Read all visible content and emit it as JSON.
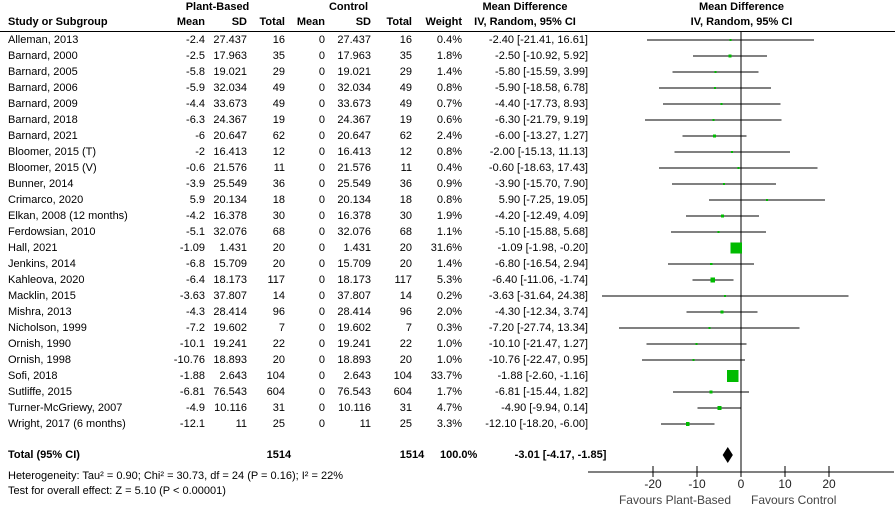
{
  "header": {
    "group1": "Plant-Based",
    "group2": "Control",
    "study_col": "Study or Subgroup",
    "mean_col": "Mean",
    "sd_col": "SD",
    "total_col": "Total",
    "weight_col": "Weight",
    "md_title": "Mean Difference",
    "md_subtitle": "IV, Random, 95% CI"
  },
  "chart_data": {
    "type": "forest",
    "effect_measure": "Mean Difference IV, Random, 95% CI",
    "marker_color": "#00bb00",
    "diamond_color": "#000000",
    "axis": {
      "ticks": [
        -20,
        -10,
        0,
        10,
        20
      ],
      "xlim": [
        -34,
        34
      ],
      "left_label": "Favours Plant-Based",
      "right_label": "Favours Control"
    },
    "studies": [
      {
        "name": "Alleman, 2013",
        "mean": "-2.4",
        "sd": "27.437",
        "n": "16",
        "c_mean": "0",
        "c_sd": "27.437",
        "c_n": "16",
        "weight": "0.4%",
        "w": 0.4,
        "est": -2.4,
        "lo": -21.41,
        "hi": 16.61,
        "ci": "-2.40 [-21.41, 16.61]"
      },
      {
        "name": "Barnard, 2000",
        "mean": "-2.5",
        "sd": "17.963",
        "n": "35",
        "c_mean": "0",
        "c_sd": "17.963",
        "c_n": "35",
        "weight": "1.8%",
        "w": 1.8,
        "est": -2.5,
        "lo": -10.92,
        "hi": 5.92,
        "ci": "-2.50 [-10.92, 5.92]"
      },
      {
        "name": "Barnard, 2005",
        "mean": "-5.8",
        "sd": "19.021",
        "n": "29",
        "c_mean": "0",
        "c_sd": "19.021",
        "c_n": "29",
        "weight": "1.4%",
        "w": 1.4,
        "est": -5.8,
        "lo": -15.59,
        "hi": 3.99,
        "ci": "-5.80 [-15.59, 3.99]"
      },
      {
        "name": "Barnard, 2006",
        "mean": "-5.9",
        "sd": "32.034",
        "n": "49",
        "c_mean": "0",
        "c_sd": "32.034",
        "c_n": "49",
        "weight": "0.8%",
        "w": 0.8,
        "est": -5.9,
        "lo": -18.58,
        "hi": 6.78,
        "ci": "-5.90 [-18.58, 6.78]"
      },
      {
        "name": "Barnard, 2009",
        "mean": "-4.4",
        "sd": "33.673",
        "n": "49",
        "c_mean": "0",
        "c_sd": "33.673",
        "c_n": "49",
        "weight": "0.7%",
        "w": 0.7,
        "est": -4.4,
        "lo": -17.73,
        "hi": 8.93,
        "ci": "-4.40 [-17.73, 8.93]"
      },
      {
        "name": "Barnard, 2018",
        "mean": "-6.3",
        "sd": "24.367",
        "n": "19",
        "c_mean": "0",
        "c_sd": "24.367",
        "c_n": "19",
        "weight": "0.6%",
        "w": 0.6,
        "est": -6.3,
        "lo": -21.79,
        "hi": 9.19,
        "ci": "-6.30 [-21.79, 9.19]"
      },
      {
        "name": "Barnard, 2021",
        "mean": "-6",
        "sd": "20.647",
        "n": "62",
        "c_mean": "0",
        "c_sd": "20.647",
        "c_n": "62",
        "weight": "2.4%",
        "w": 2.4,
        "est": -6.0,
        "lo": -13.27,
        "hi": 1.27,
        "ci": "-6.00 [-13.27, 1.27]"
      },
      {
        "name": "Bloomer, 2015 (T)",
        "mean": "-2",
        "sd": "16.413",
        "n": "12",
        "c_mean": "0",
        "c_sd": "16.413",
        "c_n": "12",
        "weight": "0.8%",
        "w": 0.8,
        "est": -2.0,
        "lo": -15.13,
        "hi": 11.13,
        "ci": "-2.00 [-15.13, 11.13]"
      },
      {
        "name": "Bloomer, 2015 (V)",
        "mean": "-0.6",
        "sd": "21.576",
        "n": "11",
        "c_mean": "0",
        "c_sd": "21.576",
        "c_n": "11",
        "weight": "0.4%",
        "w": 0.4,
        "est": -0.6,
        "lo": -18.63,
        "hi": 17.43,
        "ci": "-0.60 [-18.63, 17.43]"
      },
      {
        "name": "Bunner, 2014",
        "mean": "-3.9",
        "sd": "25.549",
        "n": "36",
        "c_mean": "0",
        "c_sd": "25.549",
        "c_n": "36",
        "weight": "0.9%",
        "w": 0.9,
        "est": -3.9,
        "lo": -15.7,
        "hi": 7.9,
        "ci": "-3.90 [-15.70, 7.90]"
      },
      {
        "name": "Crimarco, 2020",
        "mean": "5.9",
        "sd": "20.134",
        "n": "18",
        "c_mean": "0",
        "c_sd": "20.134",
        "c_n": "18",
        "weight": "0.8%",
        "w": 0.8,
        "est": 5.9,
        "lo": -7.25,
        "hi": 19.05,
        "ci": "5.90 [-7.25, 19.05]"
      },
      {
        "name": "Elkan, 2008 (12 months)",
        "mean": "-4.2",
        "sd": "16.378",
        "n": "30",
        "c_mean": "0",
        "c_sd": "16.378",
        "c_n": "30",
        "weight": "1.9%",
        "w": 1.9,
        "est": -4.2,
        "lo": -12.49,
        "hi": 4.09,
        "ci": "-4.20 [-12.49, 4.09]"
      },
      {
        "name": "Ferdowsian, 2010",
        "mean": "-5.1",
        "sd": "32.076",
        "n": "68",
        "c_mean": "0",
        "c_sd": "32.076",
        "c_n": "68",
        "weight": "1.1%",
        "w": 1.1,
        "est": -5.1,
        "lo": -15.88,
        "hi": 5.68,
        "ci": "-5.10 [-15.88, 5.68]"
      },
      {
        "name": "Hall, 2021",
        "mean": "-1.09",
        "sd": "1.431",
        "n": "20",
        "c_mean": "0",
        "c_sd": "1.431",
        "c_n": "20",
        "weight": "31.6%",
        "w": 31.6,
        "est": -1.09,
        "lo": -1.98,
        "hi": -0.2,
        "ci": "-1.09 [-1.98, -0.20]"
      },
      {
        "name": "Jenkins, 2014",
        "mean": "-6.8",
        "sd": "15.709",
        "n": "20",
        "c_mean": "0",
        "c_sd": "15.709",
        "c_n": "20",
        "weight": "1.4%",
        "w": 1.4,
        "est": -6.8,
        "lo": -16.54,
        "hi": 2.94,
        "ci": "-6.80 [-16.54, 2.94]"
      },
      {
        "name": "Kahleova, 2020",
        "mean": "-6.4",
        "sd": "18.173",
        "n": "117",
        "c_mean": "0",
        "c_sd": "18.173",
        "c_n": "117",
        "weight": "5.3%",
        "w": 5.3,
        "est": -6.4,
        "lo": -11.06,
        "hi": -1.74,
        "ci": "-6.40 [-11.06, -1.74]"
      },
      {
        "name": "Macklin, 2015",
        "mean": "-3.63",
        "sd": "37.807",
        "n": "14",
        "c_mean": "0",
        "c_sd": "37.807",
        "c_n": "14",
        "weight": "0.2%",
        "w": 0.2,
        "est": -3.63,
        "lo": -31.64,
        "hi": 24.38,
        "ci": "-3.63 [-31.64, 24.38]"
      },
      {
        "name": "Mishra, 2013",
        "mean": "-4.3",
        "sd": "28.414",
        "n": "96",
        "c_mean": "0",
        "c_sd": "28.414",
        "c_n": "96",
        "weight": "2.0%",
        "w": 2.0,
        "est": -4.3,
        "lo": -12.34,
        "hi": 3.74,
        "ci": "-4.30 [-12.34, 3.74]"
      },
      {
        "name": "Nicholson, 1999",
        "mean": "-7.2",
        "sd": "19.602",
        "n": "7",
        "c_mean": "0",
        "c_sd": "19.602",
        "c_n": "7",
        "weight": "0.3%",
        "w": 0.3,
        "est": -7.2,
        "lo": -27.74,
        "hi": 13.34,
        "ci": "-7.20 [-27.74, 13.34]"
      },
      {
        "name": "Ornish, 1990",
        "mean": "-10.1",
        "sd": "19.241",
        "n": "22",
        "c_mean": "0",
        "c_sd": "19.241",
        "c_n": "22",
        "weight": "1.0%",
        "w": 1.0,
        "est": -10.1,
        "lo": -21.47,
        "hi": 1.27,
        "ci": "-10.10 [-21.47, 1.27]"
      },
      {
        "name": "Ornish, 1998",
        "mean": "-10.76",
        "sd": "18.893",
        "n": "20",
        "c_mean": "0",
        "c_sd": "18.893",
        "c_n": "20",
        "weight": "1.0%",
        "w": 1.0,
        "est": -10.76,
        "lo": -22.47,
        "hi": 0.95,
        "ci": "-10.76 [-22.47, 0.95]"
      },
      {
        "name": "Sofi, 2018",
        "mean": "-1.88",
        "sd": "2.643",
        "n": "104",
        "c_mean": "0",
        "c_sd": "2.643",
        "c_n": "104",
        "weight": "33.7%",
        "w": 33.7,
        "est": -1.88,
        "lo": -2.6,
        "hi": -1.16,
        "ci": "-1.88 [-2.60, -1.16]"
      },
      {
        "name": "Sutliffe, 2015",
        "mean": "-6.81",
        "sd": "76.543",
        "n": "604",
        "c_mean": "0",
        "c_sd": "76.543",
        "c_n": "604",
        "weight": "1.7%",
        "w": 1.7,
        "est": -6.81,
        "lo": -15.44,
        "hi": 1.82,
        "ci": "-6.81 [-15.44, 1.82]"
      },
      {
        "name": "Turner-McGriewy, 2007",
        "mean": "-4.9",
        "sd": "10.116",
        "n": "31",
        "c_mean": "0",
        "c_sd": "10.116",
        "c_n": "31",
        "weight": "4.7%",
        "w": 4.7,
        "est": -4.9,
        "lo": -9.94,
        "hi": 0.14,
        "ci": "-4.90 [-9.94, 0.14]"
      },
      {
        "name": "Wright, 2017 (6 months)",
        "mean": "-12.1",
        "sd": "11",
        "n": "25",
        "c_mean": "0",
        "c_sd": "11",
        "c_n": "25",
        "weight": "3.3%",
        "w": 3.3,
        "est": -12.1,
        "lo": -18.2,
        "hi": -6.0,
        "ci": "-12.10 [-18.20, -6.00]"
      }
    ],
    "total": {
      "label": "Total (95% CI)",
      "n1": "1514",
      "n2": "1514",
      "weight": "100.0%",
      "ci": "-3.01 [-4.17, -1.85]",
      "est": -3.01,
      "lo": -4.17,
      "hi": -1.85
    }
  },
  "footnotes": {
    "heterogeneity": "Heterogeneity: Tau² = 0.90; Chi² = 30.73, df = 24 (P = 0.16); I² = 22%",
    "overall": "Test for overall effect: Z = 5.10 (P < 0.00001)"
  }
}
